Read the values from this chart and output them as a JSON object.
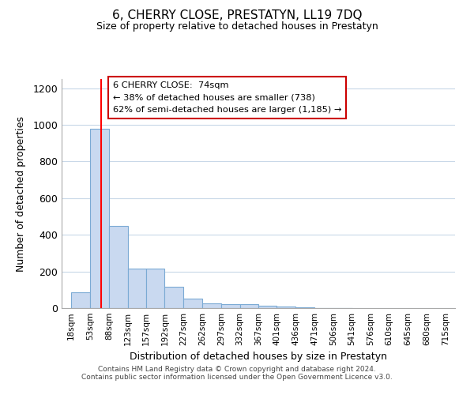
{
  "title": "6, CHERRY CLOSE, PRESTATYN, LL19 7DQ",
  "subtitle": "Size of property relative to detached houses in Prestatyn",
  "xlabel": "Distribution of detached houses by size in Prestatyn",
  "ylabel": "Number of detached properties",
  "bar_left_edges": [
    18,
    53,
    88,
    123,
    157,
    192,
    227,
    262,
    297,
    332,
    367,
    401,
    436,
    471,
    506,
    541,
    576,
    610,
    645,
    680
  ],
  "bar_widths": [
    35,
    35,
    35,
    34,
    35,
    35,
    35,
    35,
    35,
    35,
    34,
    35,
    35,
    35,
    35,
    35,
    34,
    35,
    35,
    35
  ],
  "bar_heights": [
    85,
    980,
    450,
    215,
    215,
    115,
    50,
    25,
    20,
    20,
    15,
    8,
    5,
    2,
    1,
    0,
    0,
    0,
    0,
    0
  ],
  "bar_color": "#c9d9f0",
  "bar_edge_color": "#7baad4",
  "x_tick_labels": [
    "18sqm",
    "53sqm",
    "88sqm",
    "123sqm",
    "157sqm",
    "192sqm",
    "227sqm",
    "262sqm",
    "297sqm",
    "332sqm",
    "367sqm",
    "401sqm",
    "436sqm",
    "471sqm",
    "506sqm",
    "541sqm",
    "576sqm",
    "610sqm",
    "645sqm",
    "680sqm",
    "715sqm"
  ],
  "x_tick_positions": [
    18,
    53,
    88,
    123,
    157,
    192,
    227,
    262,
    297,
    332,
    367,
    401,
    436,
    471,
    506,
    541,
    576,
    610,
    645,
    680,
    715
  ],
  "ylim": [
    0,
    1250
  ],
  "xlim": [
    0,
    733
  ],
  "yticks": [
    0,
    200,
    400,
    600,
    800,
    1000,
    1200
  ],
  "red_line_x": 74,
  "annotation_title": "6 CHERRY CLOSE:  74sqm",
  "annotation_line1": "← 38% of detached houses are smaller (738)",
  "annotation_line2": "62% of semi-detached houses are larger (1,185) →",
  "footer_line1": "Contains HM Land Registry data © Crown copyright and database right 2024.",
  "footer_line2": "Contains public sector information licensed under the Open Government Licence v3.0.",
  "background_color": "#ffffff",
  "grid_color": "#c8d8e8"
}
